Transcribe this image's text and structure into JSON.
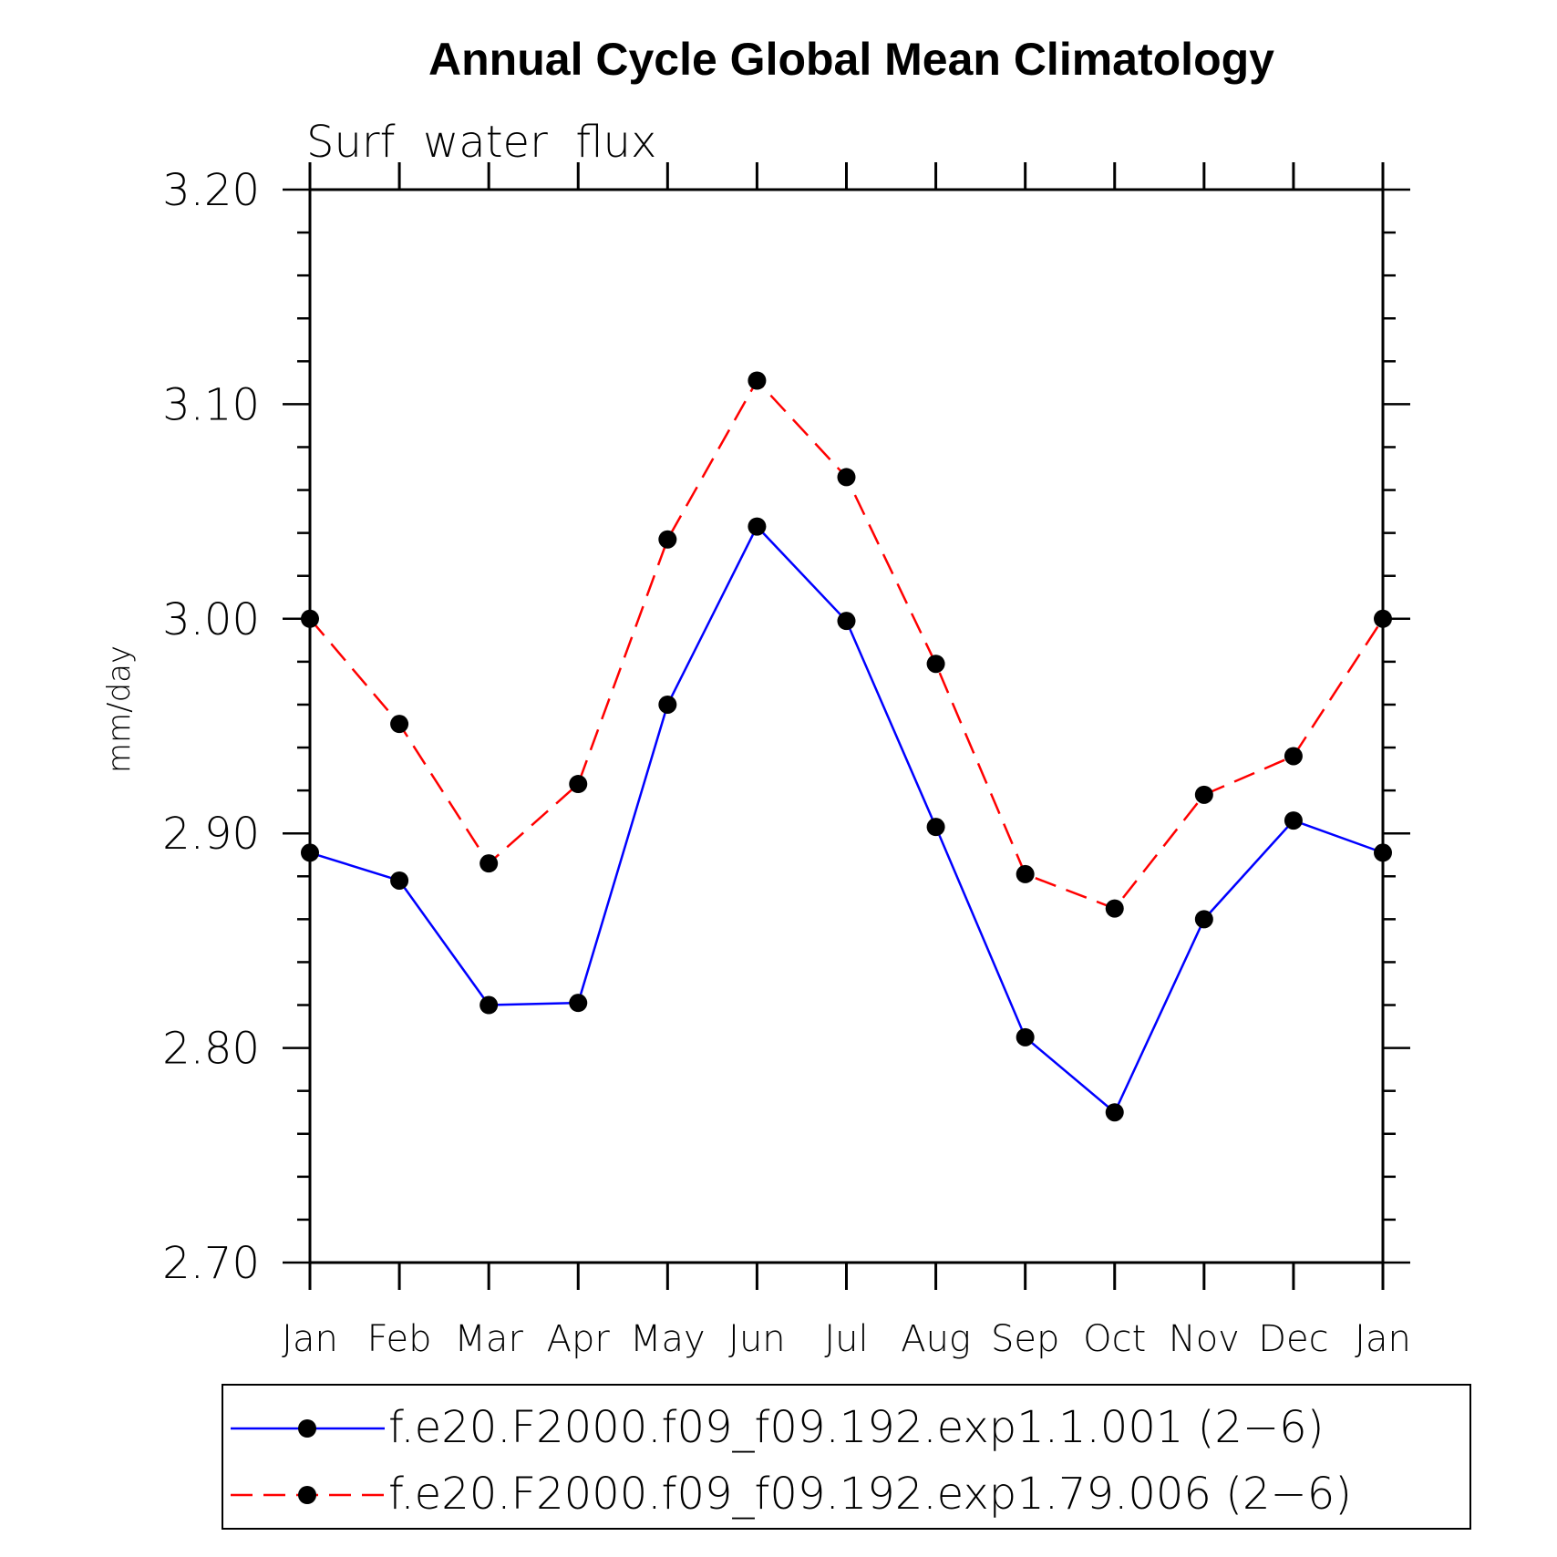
{
  "chart_data": {
    "type": "line",
    "title": "Annual Cycle Global Mean Climatology",
    "subtitle": "Surf  water  flux",
    "ylabel": "mm/day",
    "xlabel": "",
    "categories": [
      "Jan",
      "Feb",
      "Mar",
      "Apr",
      "May",
      "Jun",
      "Jul",
      "Aug",
      "Sep",
      "Oct",
      "Nov",
      "Dec",
      "Jan"
    ],
    "ylim": [
      2.7,
      3.2
    ],
    "yticks": [
      "2.70",
      "2.80",
      "2.90",
      "3.00",
      "3.10",
      "3.20"
    ],
    "grid": false,
    "legend_position": "bottom",
    "series": [
      {
        "name": "f.e20.F2000.f09_f09.192.exp1.1.001 (2−6)",
        "color": "#0000ff",
        "dash": "solid",
        "marker": "filled-circle",
        "values": [
          2.891,
          2.878,
          2.82,
          2.821,
          2.96,
          3.043,
          2.999,
          2.903,
          2.805,
          2.77,
          2.86,
          2.906,
          2.891
        ]
      },
      {
        "name": "f.e20.F2000.f09_f09.192.exp1.79.006 (2−6)",
        "color": "#ff0000",
        "dash": "dashed",
        "marker": "filled-circle",
        "values": [
          3.0,
          2.951,
          2.886,
          2.923,
          3.037,
          3.111,
          3.066,
          2.979,
          2.881,
          2.865,
          2.918,
          2.936,
          3.0
        ]
      }
    ]
  }
}
